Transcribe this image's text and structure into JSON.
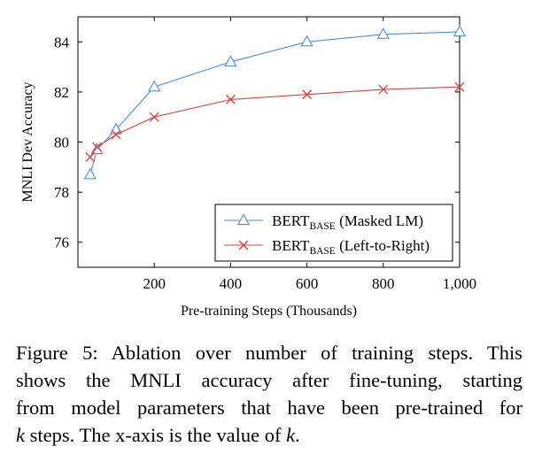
{
  "chart_data": {
    "type": "line",
    "xlabel": "Pre-training Steps (Thousands)",
    "ylabel": "MNLI Dev Accuracy",
    "xlim": [
      0,
      1000
    ],
    "ylim": [
      75,
      85
    ],
    "xticks": [
      200,
      400,
      600,
      800,
      1000
    ],
    "xtick_labels": [
      "200",
      "400",
      "600",
      "800",
      "1,000"
    ],
    "yticks": [
      76,
      78,
      80,
      82,
      84
    ],
    "ytick_labels": [
      "76",
      "78",
      "80",
      "82",
      "84"
    ],
    "grid": false,
    "legend_position": "bottom-right",
    "series": [
      {
        "name": "BERTBASE (Masked LM)",
        "label_main": "BERT",
        "label_sub": "BASE",
        "label_rest": " (Masked LM)",
        "color": "#4a8fe6",
        "marker": "triangle",
        "x": [
          32,
          50,
          100,
          200,
          400,
          600,
          800,
          1000
        ],
        "y": [
          78.7,
          79.7,
          80.5,
          82.2,
          83.2,
          84.0,
          84.3,
          84.4
        ]
      },
      {
        "name": "BERTBASE (Left-to-Right)",
        "label_main": "BERT",
        "label_sub": "BASE",
        "label_rest": " (Left-to-Right)",
        "color": "#e04040",
        "marker": "cross",
        "x": [
          32,
          50,
          100,
          200,
          400,
          600,
          800,
          1000
        ],
        "y": [
          79.4,
          79.8,
          80.3,
          81.0,
          81.7,
          81.9,
          82.1,
          82.2
        ]
      }
    ]
  },
  "caption": {
    "lines": [
      "Figure 5: Ablation over number of training steps. This",
      "shows the MNLI accuracy after fine-tuning, starting",
      "from model parameters that have been pre-trained for"
    ],
    "last_k1": "k",
    "last_mid": " steps. The x-axis is the value of ",
    "last_k2": "k",
    "last_end": "."
  }
}
